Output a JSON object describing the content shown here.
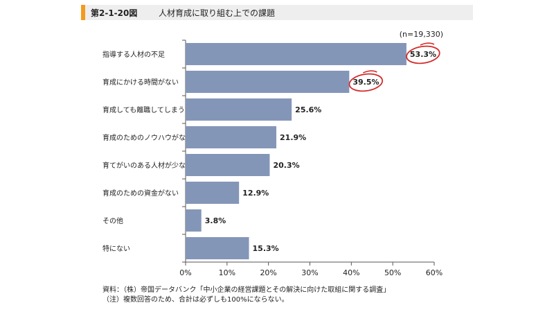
{
  "header": {
    "figure_number": "第2-1-20図",
    "title": "人材育成に取り組む上での課題"
  },
  "chart_data": {
    "type": "bar",
    "orientation": "horizontal",
    "sample_note": "(n=19,330)",
    "categories": [
      "指導する人材の不足",
      "育成にかける時間がない",
      "育成しても離職してしまう",
      "育成のためのノウハウがない",
      "育てがいのある人材が少ない",
      "育成のための資金がない",
      "その他",
      "特にない"
    ],
    "values": [
      53.3,
      39.5,
      25.6,
      21.9,
      20.3,
      12.9,
      3.8,
      15.3
    ],
    "value_labels": [
      "53.3%",
      "39.5%",
      "25.6%",
      "21.9%",
      "20.3%",
      "12.9%",
      "3.8%",
      "15.3%"
    ],
    "highlighted": [
      0,
      1
    ],
    "xlim": [
      0,
      60
    ],
    "xticks": [
      0,
      10,
      20,
      30,
      40,
      50,
      60
    ],
    "xtick_labels": [
      "0%",
      "10%",
      "20%",
      "30%",
      "40%",
      "50%",
      "60%"
    ],
    "grid": false,
    "bar_color": "#8496b8",
    "highlight_color": "#d42b2b"
  },
  "notes": {
    "source": "資料：（株）帝国データバンク「中小企業の経営課題とその解決に向けた取組に関する調査」",
    "note": "（注）複数回答のため、合計は必ずしも100%にならない。"
  }
}
